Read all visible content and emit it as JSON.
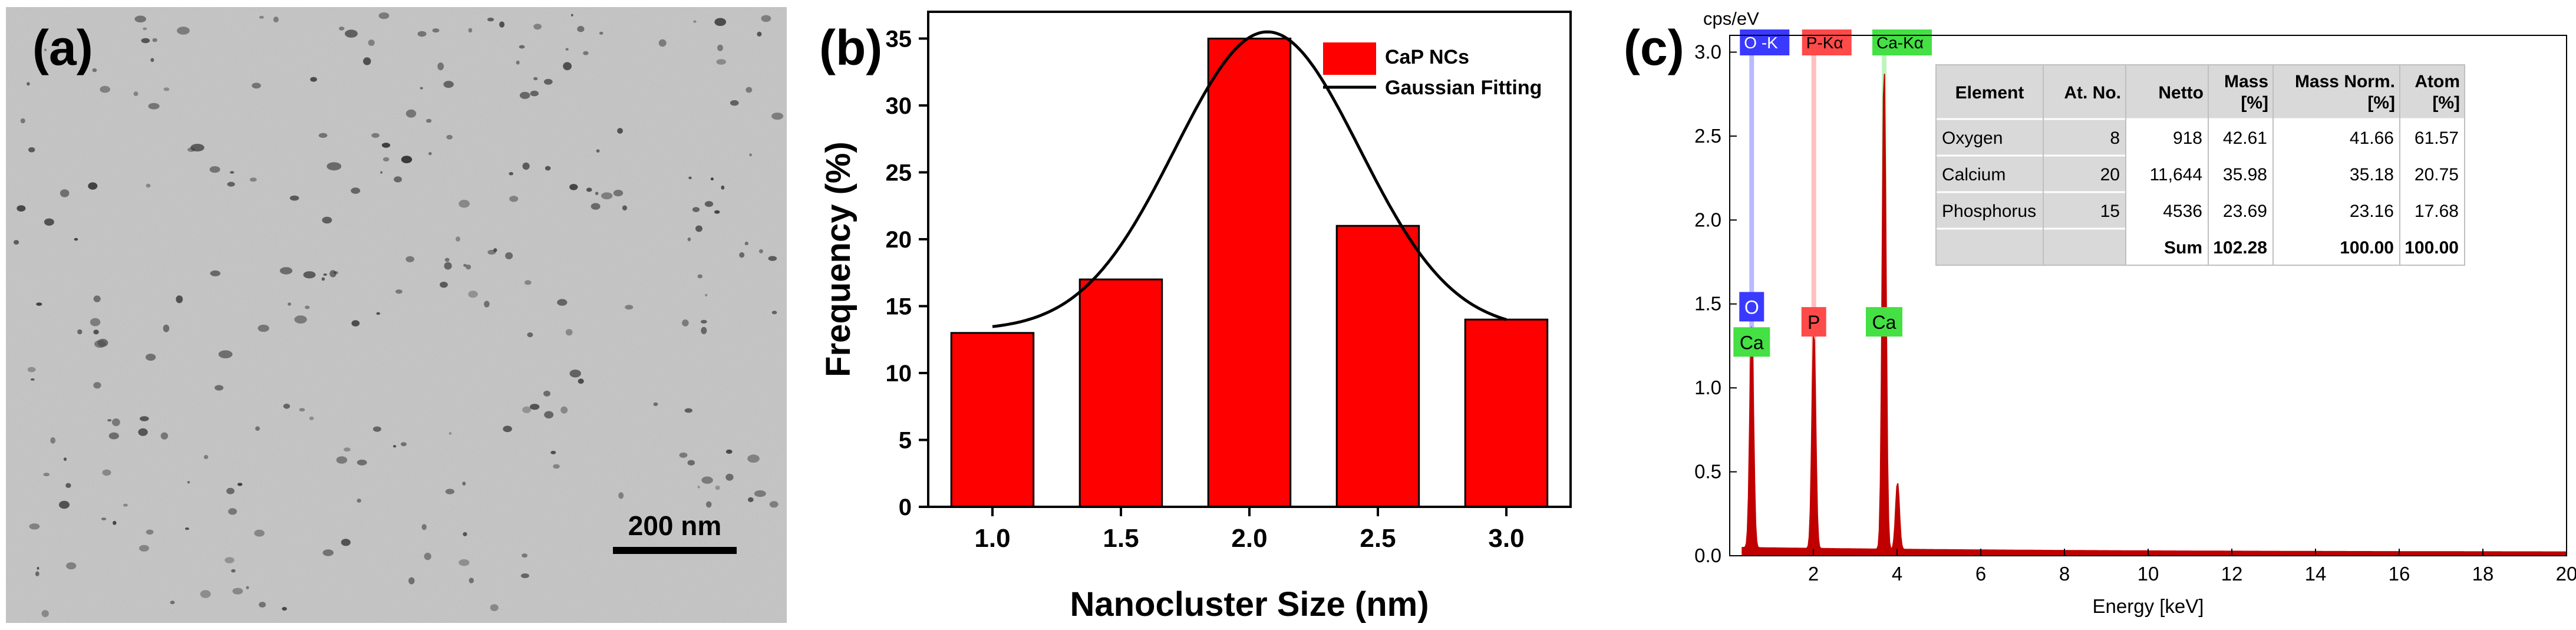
{
  "panel_labels": {
    "a": "(a)",
    "b": "(b)",
    "c": "(c)"
  },
  "panel_a": {
    "image_desc": "TEM micrograph",
    "scale_bar_label": "200 nm",
    "background": "#b9b9b9"
  },
  "chart_data": [
    {
      "type": "bar",
      "categories": [
        "1.0",
        "1.5",
        "2.0",
        "2.5",
        "3.0"
      ],
      "values": [
        13,
        17,
        35,
        21,
        14
      ],
      "xlabel": "Nanocluster Size (nm)",
      "ylabel": "Frequency (%)",
      "ylim": [
        0,
        37
      ],
      "yticks": [
        0,
        5,
        10,
        15,
        20,
        25,
        30,
        35
      ],
      "bar_color": "#ff0000",
      "series": [
        {
          "name": "CaP NCs",
          "values": [
            13,
            17,
            35,
            21,
            14
          ]
        }
      ],
      "fit": {
        "name": "Gaussian Fitting",
        "model": "gaussian",
        "baseline": 13.2,
        "amplitude": 22.3,
        "center": 2.07,
        "sigma": 0.36,
        "x_range": [
          1.0,
          3.0
        ]
      },
      "legend": [
        "CaP NCs",
        "Gaussian Fitting"
      ],
      "legend_placement": "top-right"
    },
    {
      "type": "line",
      "title": "",
      "unit_label": "cps/eV",
      "xlabel": "Energy [keV]",
      "ylabel": "",
      "xlim": [
        0,
        20
      ],
      "ylim": [
        0,
        3.1
      ],
      "xticks": [
        2,
        4,
        6,
        8,
        10,
        12,
        14,
        16,
        18,
        20
      ],
      "yticks": [
        "0.0",
        "0.5",
        "1.0",
        "1.5",
        "2.0",
        "2.5",
        "3.0"
      ],
      "line_color": "#c00000",
      "peaks": [
        {
          "element": "O",
          "energy": 0.525,
          "height": 1.32
        },
        {
          "element": "P",
          "energy": 2.01,
          "height": 1.3
        },
        {
          "element": "Ca",
          "energy": 3.69,
          "height": 2.88
        },
        {
          "element": "Ca",
          "energy": 4.01,
          "height": 0.4
        }
      ],
      "line_markers": [
        {
          "id": "O-K",
          "label": "O -K",
          "energy": 0.525,
          "color": "#3a3aff"
        },
        {
          "id": "P-Ka",
          "label": "P-Kα",
          "energy": 2.01,
          "color": "#ff4a4a"
        },
        {
          "id": "Ca-Ka",
          "label": "Ca-Kα",
          "energy": 3.69,
          "color": "#44e044"
        }
      ],
      "peak_labels": [
        {
          "text": "O",
          "energy": 0.525,
          "y": 1.48,
          "color": "#3a3aff",
          "text_color": "#ffffff"
        },
        {
          "text": "Ca",
          "energy": 0.525,
          "y": 1.27,
          "color": "#44e044",
          "text_color": "#000000"
        },
        {
          "text": "P",
          "energy": 2.01,
          "y": 1.39,
          "color": "#ff4a4a",
          "text_color": "#000000"
        },
        {
          "text": "Ca",
          "energy": 3.69,
          "y": 1.39,
          "color": "#44e044",
          "text_color": "#000000"
        }
      ],
      "table": {
        "headers": [
          "Element",
          "At. No.",
          "Netto",
          "Mass\n[%]",
          "Mass Norm.\n[%]",
          "Atom\n[%]"
        ],
        "rows": [
          [
            "Oxygen",
            "8",
            "918",
            "42.61",
            "41.66",
            "61.57"
          ],
          [
            "Calcium",
            "20",
            "11,644",
            "35.98",
            "35.18",
            "20.75"
          ],
          [
            "Phosphorus",
            "15",
            "4536",
            "23.69",
            "23.16",
            "17.68"
          ]
        ],
        "sum_row": [
          "",
          "",
          "Sum",
          "102.28",
          "100.00",
          "100.00"
        ]
      }
    }
  ]
}
